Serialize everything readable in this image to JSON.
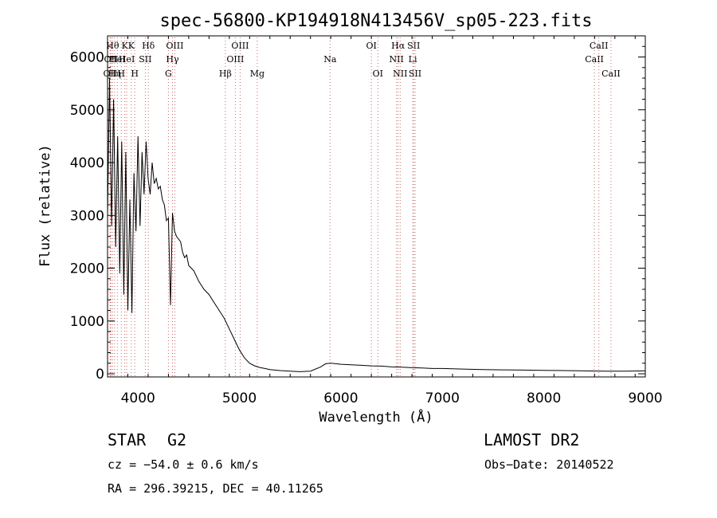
{
  "chart_data": {
    "type": "line",
    "title": "spec-56800-KP194918N413456V_sp05-223.fits",
    "xlabel": "Wavelength (Å)",
    "ylabel": "Flux (relative)",
    "xlim": [
      3700,
      9000
    ],
    "ylim": [
      -60,
      6400
    ],
    "x_ticks": [
      4000,
      5000,
      6000,
      7000,
      8000,
      9000
    ],
    "y_ticks": [
      0,
      1000,
      2000,
      3000,
      4000,
      5000,
      6000
    ],
    "grid": false,
    "series": [
      {
        "x": [
          3700,
          3720,
          3740,
          3760,
          3780,
          3800,
          3820,
          3840,
          3860,
          3880,
          3900,
          3920,
          3940,
          3960,
          3980,
          4000,
          4020,
          4040,
          4060,
          4080,
          4100,
          4120,
          4140,
          4160,
          4180,
          4200,
          4220,
          4240,
          4260,
          4280,
          4300,
          4320,
          4340,
          4360,
          4380,
          4400,
          4420,
          4440,
          4460,
          4480,
          4500,
          4550,
          4600,
          4650,
          4700,
          4750,
          4800,
          4850,
          4900,
          4950,
          5000,
          5050,
          5100,
          5150,
          5200,
          5250,
          5300,
          5400,
          5500,
          5600,
          5700,
          5800,
          5850,
          5900,
          5950,
          6000,
          6100,
          6200,
          6300,
          6400,
          6500,
          6600,
          6700,
          6800,
          6900,
          7000,
          7200,
          7400,
          7600,
          7800,
          8000,
          8200,
          8400,
          8600,
          8800,
          9000
        ],
        "y": [
          3000,
          5600,
          2800,
          5200,
          2400,
          4500,
          1900,
          4400,
          1500,
          4200,
          1200,
          3300,
          1150,
          3800,
          2700,
          4500,
          2800,
          4200,
          3400,
          4400,
          3700,
          3400,
          4000,
          3600,
          3700,
          3500,
          3550,
          3300,
          3200,
          2900,
          2950,
          1300,
          3050,
          2700,
          2600,
          2550,
          2500,
          2300,
          2200,
          2250,
          2050,
          1950,
          1750,
          1600,
          1500,
          1350,
          1200,
          1050,
          850,
          650,
          450,
          300,
          200,
          150,
          120,
          100,
          80,
          60,
          50,
          40,
          50,
          130,
          190,
          200,
          190,
          180,
          170,
          160,
          150,
          145,
          130,
          125,
          115,
          110,
          100,
          100,
          90,
          80,
          75,
          70,
          65,
          60,
          55,
          50,
          50,
          55
        ]
      }
    ],
    "line_markers": [
      {
        "wl": 3726,
        "label": "OII",
        "row": 3,
        "color": "#ff3333"
      },
      {
        "wl": 3734,
        "label": "OII",
        "row": 2,
        "color": "#cc6666"
      },
      {
        "wl": 3750,
        "label": "Hθ",
        "row": 1,
        "color": "#cc6666"
      },
      {
        "wl": 3770,
        "label": "Hη",
        "row": 3,
        "color": "#cc6666"
      },
      {
        "wl": 3797,
        "label": "HeI",
        "row": 2,
        "color": "#cc6666"
      },
      {
        "wl": 3835,
        "label": "H",
        "row": 3,
        "color": "#cc6666"
      },
      {
        "wl": 3870,
        "label": "K",
        "row": 1,
        "color": "#cc6666"
      },
      {
        "wl": 3889,
        "label": "HeI",
        "row": 2,
        "color": "#cc6666"
      },
      {
        "wl": 3934,
        "label": "K",
        "row": 1,
        "color": "#cc6666"
      },
      {
        "wl": 3968,
        "label": "H",
        "row": 3,
        "color": "#cc6666"
      },
      {
        "wl": 4072,
        "label": "SII",
        "row": 2,
        "color": "#cc6666"
      },
      {
        "wl": 4102,
        "label": "Hδ",
        "row": 1,
        "color": "#cc6666"
      },
      {
        "wl": 4300,
        "label": "G",
        "row": 3,
        "color": "#cc6666"
      },
      {
        "wl": 4340,
        "label": "Hγ",
        "row": 2,
        "color": "#cc6666"
      },
      {
        "wl": 4363,
        "label": "OIII",
        "row": 1,
        "color": "#cc6666"
      },
      {
        "wl": 4861,
        "label": "Hβ",
        "row": 3,
        "color": "#cc6666"
      },
      {
        "wl": 4959,
        "label": "OIII",
        "row": 2,
        "color": "#cc6666"
      },
      {
        "wl": 5007,
        "label": "OIII",
        "row": 1,
        "color": "#cc6666"
      },
      {
        "wl": 5175,
        "label": "Mg",
        "row": 3,
        "color": "#cc6666"
      },
      {
        "wl": 5893,
        "label": "Na",
        "row": 2,
        "color": "#cc6666"
      },
      {
        "wl": 6300,
        "label": "OI",
        "row": 1,
        "color": "#cc6666"
      },
      {
        "wl": 6364,
        "label": "OI",
        "row": 3,
        "color": "#cc6666"
      },
      {
        "wl": 6548,
        "label": "NII",
        "row": 2,
        "color": "#cc6666"
      },
      {
        "wl": 6563,
        "label": "Hα",
        "row": 1,
        "color": "#cc6666"
      },
      {
        "wl": 6584,
        "label": "NII",
        "row": 3,
        "color": "#cc6666"
      },
      {
        "wl": 6708,
        "label": "Li",
        "row": 2,
        "color": "#cc6666"
      },
      {
        "wl": 6717,
        "label": "SII",
        "row": 1,
        "color": "#cc6666"
      },
      {
        "wl": 6731,
        "label": "SII",
        "row": 3,
        "color": "#cc6666"
      },
      {
        "wl": 8498,
        "label": "CaII",
        "row": 2,
        "color": "#cc6666"
      },
      {
        "wl": 8542,
        "label": "CaII",
        "row": 1,
        "color": "#cc6666"
      },
      {
        "wl": 8662,
        "label": "CaII",
        "row": 3,
        "color": "#cc6666"
      }
    ]
  },
  "info": {
    "object_class": "STAR",
    "subclass": "G2",
    "survey": "LAMOST DR2",
    "redshift": "cz = −54.0 ± 0.6 km/s",
    "obs_date": "Obs−Date: 20140522",
    "coords": "RA = 296.39215, DEC =  40.11265"
  }
}
